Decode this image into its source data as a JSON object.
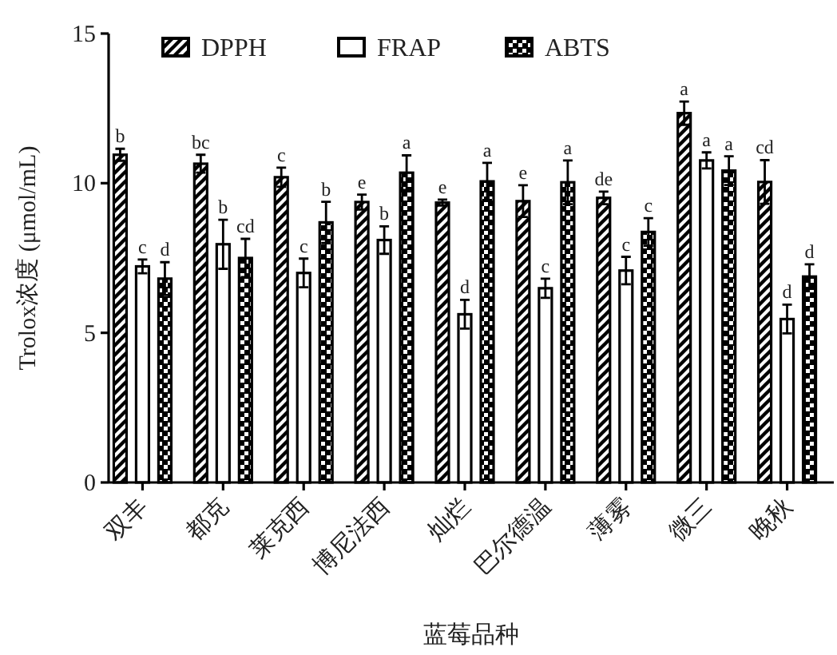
{
  "chart_data": {
    "type": "bar",
    "xlabel": "蓝莓品种",
    "ylabel": "Trolox浓度 (μmol/mL)",
    "categories": [
      "双丰",
      "都克",
      "莱克西",
      "博尼法西",
      "灿烂",
      "巴尔德温",
      "薄雾",
      "微三",
      "晚秋"
    ],
    "ylim": [
      0,
      15
    ],
    "yticks": [
      0,
      5,
      10,
      15
    ],
    "grid": false,
    "legend": "top",
    "series": [
      {
        "name": "DPPH",
        "color": "#000000",
        "values": [
          10.95,
          10.65,
          10.2,
          9.37,
          9.35,
          9.4,
          9.51,
          12.34,
          10.04
        ],
        "errors": [
          0.2,
          0.3,
          0.32,
          0.25,
          0.1,
          0.53,
          0.21,
          0.39,
          0.73
        ],
        "value_labels": [
          "b",
          "bc",
          "c",
          "e",
          "e",
          "e",
          "de",
          "a",
          "cd"
        ]
      },
      {
        "name": "FRAP",
        "color": "#ffffff",
        "values": [
          7.22,
          7.96,
          7.0,
          8.1,
          5.62,
          6.49,
          7.08,
          10.76,
          5.46
        ],
        "errors": [
          0.23,
          0.82,
          0.48,
          0.46,
          0.48,
          0.32,
          0.46,
          0.27,
          0.48
        ],
        "value_labels": [
          "c",
          "b",
          "c",
          "b",
          "d",
          "c",
          "c",
          "a",
          "d"
        ]
      },
      {
        "name": "ABTS",
        "color": "#000000",
        "values": [
          6.81,
          7.5,
          8.69,
          10.35,
          10.06,
          10.03,
          8.37,
          10.42,
          6.88
        ],
        "errors": [
          0.55,
          0.64,
          0.69,
          0.58,
          0.62,
          0.73,
          0.46,
          0.48,
          0.41
        ],
        "value_labels": [
          "d",
          "cd",
          "b",
          "a",
          "a",
          "a",
          "c",
          "a",
          "d"
        ]
      }
    ]
  }
}
